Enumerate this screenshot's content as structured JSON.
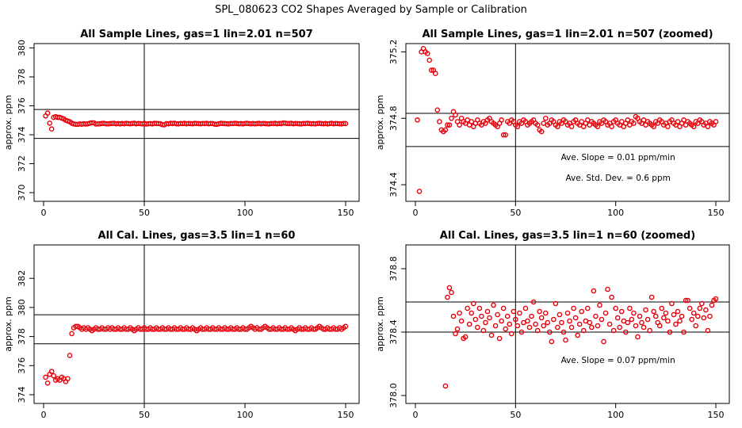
{
  "figure_title": "SPL_080623  CO2 Shapes Averaged by Sample or Calibration",
  "colors": {
    "points": "#e8000b",
    "axes": "#000000",
    "lines": "#000000"
  },
  "chart_data": [
    {
      "type": "scatter",
      "title": "All Sample Lines, gas=1 lin=2.01 n=507",
      "ylabel": "approx. ppm",
      "xlim": [
        0,
        150
      ],
      "ylim": [
        369.4,
        380.3
      ],
      "xticks": [
        "0",
        "50",
        "100",
        "150"
      ],
      "yticks": [
        "370",
        "372",
        "374",
        "376",
        "378",
        "380"
      ],
      "hlines": [
        375.75,
        373.75
      ],
      "vline": 50,
      "annotations": [],
      "x": [
        1,
        2,
        3,
        4,
        5,
        6,
        7,
        8,
        9,
        10,
        11,
        12,
        13,
        14,
        15,
        16,
        17,
        18,
        19,
        20,
        21,
        22,
        23,
        24,
        25,
        26,
        27,
        28,
        29,
        30,
        31,
        32,
        33,
        34,
        35,
        36,
        37,
        38,
        39,
        40,
        41,
        42,
        43,
        44,
        45,
        46,
        47,
        48,
        49,
        50,
        51,
        52,
        53,
        54,
        55,
        56,
        57,
        58,
        59,
        60,
        61,
        62,
        63,
        64,
        65,
        66,
        67,
        68,
        69,
        70,
        71,
        72,
        73,
        74,
        75,
        76,
        77,
        78,
        79,
        80,
        81,
        82,
        83,
        84,
        85,
        86,
        87,
        88,
        89,
        90,
        91,
        92,
        93,
        94,
        95,
        96,
        97,
        98,
        99,
        100,
        101,
        102,
        103,
        104,
        105,
        106,
        107,
        108,
        109,
        110,
        111,
        112,
        113,
        114,
        115,
        116,
        117,
        118,
        119,
        120,
        121,
        122,
        123,
        124,
        125,
        126,
        127,
        128,
        129,
        130,
        131,
        132,
        133,
        134,
        135,
        136,
        137,
        138,
        139,
        140,
        141,
        142,
        143,
        144,
        145,
        146,
        147,
        148,
        149,
        150
      ],
      "y": [
        375.3,
        375.5,
        374.8,
        374.4,
        375.2,
        375.25,
        375.2,
        375.2,
        375.15,
        375.1,
        375.0,
        374.95,
        374.9,
        374.8,
        374.75,
        374.72,
        374.72,
        374.75,
        374.73,
        374.76,
        374.74,
        374.76,
        374.8,
        374.83,
        374.82,
        374.74,
        374.75,
        374.76,
        374.78,
        374.79,
        374.76,
        374.75,
        374.77,
        374.78,
        374.79,
        374.76,
        374.77,
        374.75,
        374.78,
        374.76,
        374.79,
        374.77,
        374.76,
        374.78,
        374.8,
        374.76,
        374.78,
        374.77,
        374.75,
        374.79,
        374.74,
        374.76,
        374.77,
        374.75,
        374.79,
        374.78,
        374.77,
        374.76,
        374.7,
        374.69,
        374.77,
        374.76,
        374.79,
        374.78,
        374.8,
        374.76,
        374.75,
        374.78,
        374.77,
        374.79,
        374.76,
        374.78,
        374.77,
        374.76,
        374.79,
        374.78,
        374.77,
        374.76,
        374.78,
        374.77,
        374.79,
        374.76,
        374.78,
        374.77,
        374.73,
        374.72,
        374.76,
        374.79,
        374.78,
        374.77,
        374.76,
        374.75,
        374.78,
        374.77,
        374.79,
        374.78,
        374.76,
        374.77,
        374.75,
        374.78,
        374.79,
        374.77,
        374.76,
        374.78,
        374.75,
        374.77,
        374.79,
        374.76,
        374.78,
        374.77,
        374.76,
        374.75,
        374.78,
        374.77,
        374.79,
        374.76,
        374.78,
        374.77,
        374.81,
        374.8,
        374.78,
        374.77,
        374.79,
        374.76,
        374.78,
        374.77,
        374.76,
        374.75,
        374.78,
        374.77,
        374.79,
        374.78,
        374.76,
        374.77,
        374.75,
        374.78,
        374.79,
        374.77,
        374.76,
        374.78,
        374.75,
        374.77,
        374.79,
        374.76,
        374.78,
        374.77,
        374.76,
        374.75,
        374.78,
        374.77
      ]
    },
    {
      "type": "scatter",
      "title": "All Sample Lines, gas=1 lin=2.01 n=507 (zoomed)",
      "ylabel": "approx. ppm",
      "xlim": [
        0,
        150
      ],
      "ylim": [
        374.3,
        375.25
      ],
      "xticks": [
        "0",
        "50",
        "100",
        "150"
      ],
      "yticks": [
        "374.4",
        "374.8",
        "375.2"
      ],
      "hlines": [
        374.83,
        374.63
      ],
      "vline": 50,
      "annotations": [
        "Ave. Slope =  0.01  ppm/min",
        "Ave. Std. Dev. =  0.6  ppm"
      ],
      "x": [
        1,
        2,
        3,
        4,
        5,
        6,
        7,
        8,
        9,
        10,
        11,
        12,
        13,
        14,
        15,
        16,
        17,
        18,
        19,
        20,
        21,
        22,
        23,
        24,
        25,
        26,
        27,
        28,
        29,
        30,
        31,
        32,
        33,
        34,
        35,
        36,
        37,
        38,
        39,
        40,
        41,
        42,
        43,
        44,
        45,
        46,
        47,
        48,
        49,
        50,
        51,
        52,
        53,
        54,
        55,
        56,
        57,
        58,
        59,
        60,
        61,
        62,
        63,
        64,
        65,
        66,
        67,
        68,
        69,
        70,
        71,
        72,
        73,
        74,
        75,
        76,
        77,
        78,
        79,
        80,
        81,
        82,
        83,
        84,
        85,
        86,
        87,
        88,
        89,
        90,
        91,
        92,
        93,
        94,
        95,
        96,
        97,
        98,
        99,
        100,
        101,
        102,
        103,
        104,
        105,
        106,
        107,
        108,
        109,
        110,
        111,
        112,
        113,
        114,
        115,
        116,
        117,
        118,
        119,
        120,
        121,
        122,
        123,
        124,
        125,
        126,
        127,
        128,
        129,
        130,
        131,
        132,
        133,
        134,
        135,
        136,
        137,
        138,
        139,
        140,
        141,
        142,
        143,
        144,
        145,
        146,
        147,
        148,
        149,
        150
      ],
      "y": [
        374.79,
        374.36,
        375.2,
        375.22,
        375.2,
        375.19,
        375.15,
        375.09,
        375.09,
        375.07,
        374.85,
        374.78,
        374.73,
        374.72,
        374.73,
        374.76,
        374.76,
        374.8,
        374.84,
        374.82,
        374.78,
        374.76,
        374.8,
        374.78,
        374.77,
        374.79,
        374.76,
        374.78,
        374.75,
        374.77,
        374.79,
        374.77,
        374.76,
        374.78,
        374.77,
        374.79,
        374.8,
        374.78,
        374.77,
        374.76,
        374.75,
        374.77,
        374.79,
        374.7,
        374.7,
        374.78,
        374.77,
        374.79,
        374.78,
        374.76,
        374.75,
        374.78,
        374.77,
        374.79,
        374.78,
        374.76,
        374.77,
        374.78,
        374.79,
        374.77,
        374.76,
        374.73,
        374.72,
        374.77,
        374.8,
        374.76,
        374.77,
        374.79,
        374.78,
        374.76,
        374.75,
        374.78,
        374.77,
        374.79,
        374.78,
        374.76,
        374.77,
        374.75,
        374.78,
        374.79,
        374.77,
        374.76,
        374.78,
        374.75,
        374.77,
        374.79,
        374.76,
        374.78,
        374.77,
        374.76,
        374.75,
        374.78,
        374.77,
        374.79,
        374.78,
        374.76,
        374.77,
        374.75,
        374.78,
        374.79,
        374.77,
        374.76,
        374.78,
        374.75,
        374.77,
        374.79,
        374.76,
        374.78,
        374.77,
        374.81,
        374.8,
        374.78,
        374.77,
        374.79,
        374.76,
        374.78,
        374.77,
        374.76,
        374.75,
        374.78,
        374.77,
        374.79,
        374.78,
        374.76,
        374.77,
        374.75,
        374.78,
        374.79,
        374.77,
        374.76,
        374.78,
        374.75,
        374.77,
        374.79,
        374.76,
        374.78,
        374.77,
        374.76,
        374.75,
        374.78,
        374.77,
        374.79,
        374.78,
        374.76,
        374.77,
        374.75,
        374.78,
        374.77,
        374.76,
        374.78
      ]
    },
    {
      "type": "scatter",
      "title": "All Cal. Lines, gas=3.5 lin=1 n=60",
      "ylabel": "approx. ppm",
      "xlim": [
        0,
        150
      ],
      "ylim": [
        373.4,
        384.3
      ],
      "xticks": [
        "0",
        "50",
        "100",
        "150"
      ],
      "yticks": [
        "374",
        "376",
        "378",
        "380",
        "382"
      ],
      "hlines": [
        379.5,
        377.5
      ],
      "vline": 50,
      "annotations": [],
      "x": [
        1,
        2,
        3,
        4,
        5,
        6,
        7,
        8,
        9,
        10,
        11,
        12,
        13,
        14,
        15,
        16,
        17,
        18,
        19,
        20,
        21,
        22,
        23,
        24,
        25,
        26,
        27,
        28,
        29,
        30,
        31,
        32,
        33,
        34,
        35,
        36,
        37,
        38,
        39,
        40,
        41,
        42,
        43,
        44,
        45,
        46,
        47,
        48,
        49,
        50,
        51,
        52,
        53,
        54,
        55,
        56,
        57,
        58,
        59,
        60,
        61,
        62,
        63,
        64,
        65,
        66,
        67,
        68,
        69,
        70,
        71,
        72,
        73,
        74,
        75,
        76,
        77,
        78,
        79,
        80,
        81,
        82,
        83,
        84,
        85,
        86,
        87,
        88,
        89,
        90,
        91,
        92,
        93,
        94,
        95,
        96,
        97,
        98,
        99,
        100,
        101,
        102,
        103,
        104,
        105,
        106,
        107,
        108,
        109,
        110,
        111,
        112,
        113,
        114,
        115,
        116,
        117,
        118,
        119,
        120,
        121,
        122,
        123,
        124,
        125,
        126,
        127,
        128,
        129,
        130,
        131,
        132,
        133,
        134,
        135,
        136,
        137,
        138,
        139,
        140,
        141,
        142,
        143,
        144,
        145,
        146,
        147,
        148,
        149,
        150
      ],
      "y": [
        375.2,
        374.8,
        375.4,
        375.6,
        375.3,
        375.0,
        375.1,
        375.0,
        375.2,
        375.1,
        374.9,
        375.1,
        376.7,
        378.2,
        378.6,
        378.7,
        378.7,
        378.6,
        378.5,
        378.6,
        378.5,
        378.6,
        378.5,
        378.4,
        378.5,
        378.6,
        378.5,
        378.5,
        378.6,
        378.5,
        378.5,
        378.6,
        378.5,
        378.6,
        378.5,
        378.5,
        378.6,
        378.5,
        378.5,
        378.6,
        378.5,
        378.5,
        378.6,
        378.5,
        378.4,
        378.5,
        378.6,
        378.5,
        378.5,
        378.6,
        378.5,
        378.5,
        378.6,
        378.5,
        378.5,
        378.6,
        378.5,
        378.5,
        378.6,
        378.5,
        378.5,
        378.6,
        378.5,
        378.5,
        378.6,
        378.5,
        378.5,
        378.6,
        378.5,
        378.5,
        378.6,
        378.5,
        378.5,
        378.6,
        378.5,
        378.4,
        378.5,
        378.6,
        378.5,
        378.5,
        378.6,
        378.5,
        378.5,
        378.6,
        378.5,
        378.5,
        378.6,
        378.5,
        378.5,
        378.6,
        378.5,
        378.5,
        378.6,
        378.5,
        378.5,
        378.6,
        378.5,
        378.5,
        378.6,
        378.5,
        378.5,
        378.6,
        378.7,
        378.6,
        378.5,
        378.6,
        378.5,
        378.5,
        378.6,
        378.7,
        378.6,
        378.5,
        378.5,
        378.6,
        378.5,
        378.5,
        378.6,
        378.5,
        378.5,
        378.6,
        378.5,
        378.5,
        378.6,
        378.5,
        378.4,
        378.5,
        378.6,
        378.5,
        378.5,
        378.6,
        378.5,
        378.5,
        378.6,
        378.5,
        378.5,
        378.6,
        378.7,
        378.6,
        378.5,
        378.5,
        378.6,
        378.5,
        378.5,
        378.6,
        378.5,
        378.5,
        378.6,
        378.5,
        378.6,
        378.7
      ]
    },
    {
      "type": "scatter",
      "title": "All Cal. Lines, gas=3.5 lin=1 n=60 (zoomed)",
      "ylabel": "approx. ppm",
      "xlim": [
        0,
        150
      ],
      "ylim": [
        377.95,
        378.95
      ],
      "xticks": [
        "0",
        "50",
        "100",
        "150"
      ],
      "yticks": [
        "378.0",
        "378.4",
        "378.8"
      ],
      "hlines": [
        378.59,
        378.4
      ],
      "vline": 50,
      "annotations": [
        "Ave. Slope =  0.07  ppm/min"
      ],
      "x": [
        15,
        16,
        17,
        18,
        19,
        20,
        21,
        22,
        23,
        24,
        25,
        26,
        27,
        28,
        29,
        30,
        31,
        32,
        33,
        34,
        35,
        36,
        37,
        38,
        39,
        40,
        41,
        42,
        43,
        44,
        45,
        46,
        47,
        48,
        49,
        50,
        51,
        52,
        53,
        54,
        55,
        56,
        57,
        58,
        59,
        60,
        61,
        62,
        63,
        64,
        65,
        66,
        67,
        68,
        69,
        70,
        71,
        72,
        73,
        74,
        75,
        76,
        77,
        78,
        79,
        80,
        81,
        82,
        83,
        84,
        85,
        86,
        87,
        88,
        89,
        90,
        91,
        92,
        93,
        94,
        95,
        96,
        97,
        98,
        99,
        100,
        101,
        102,
        103,
        104,
        105,
        106,
        107,
        108,
        109,
        110,
        111,
        112,
        113,
        114,
        115,
        116,
        117,
        118,
        119,
        120,
        121,
        122,
        123,
        124,
        125,
        126,
        127,
        128,
        129,
        130,
        131,
        132,
        133,
        134,
        135,
        136,
        137,
        138,
        139,
        140,
        141,
        142,
        143,
        144,
        145,
        146,
        147,
        148,
        149,
        150
      ],
      "y": [
        378.06,
        378.62,
        378.68,
        378.65,
        378.5,
        378.39,
        378.42,
        378.52,
        378.47,
        378.36,
        378.37,
        378.55,
        378.45,
        378.52,
        378.58,
        378.48,
        378.43,
        378.55,
        378.5,
        378.41,
        378.46,
        378.53,
        378.49,
        378.38,
        378.57,
        378.44,
        378.51,
        378.36,
        378.47,
        378.55,
        378.42,
        378.5,
        378.45,
        378.39,
        378.53,
        378.48,
        378.44,
        378.52,
        378.4,
        378.46,
        378.55,
        378.47,
        378.43,
        378.5,
        378.59,
        378.45,
        378.41,
        378.53,
        378.49,
        378.44,
        378.52,
        378.46,
        378.4,
        378.34,
        378.48,
        378.58,
        378.43,
        378.51,
        378.46,
        378.4,
        378.35,
        378.52,
        378.47,
        378.43,
        378.55,
        378.49,
        378.38,
        378.45,
        378.53,
        378.41,
        378.47,
        378.55,
        378.46,
        378.43,
        378.66,
        378.5,
        378.44,
        378.57,
        378.48,
        378.34,
        378.52,
        378.67,
        378.45,
        378.62,
        378.41,
        378.55,
        378.49,
        378.43,
        378.53,
        378.47,
        378.4,
        378.46,
        378.55,
        378.48,
        378.52,
        378.44,
        378.37,
        378.5,
        378.46,
        378.43,
        378.54,
        378.48,
        378.41,
        378.62,
        378.53,
        378.5,
        378.46,
        378.44,
        378.55,
        378.49,
        378.52,
        378.47,
        378.4,
        378.58,
        378.51,
        378.45,
        378.53,
        378.47,
        378.5,
        378.4,
        378.6,
        378.6,
        378.55,
        378.48,
        378.52,
        378.44,
        378.5,
        378.55,
        378.58,
        378.49,
        378.54,
        378.41,
        378.5,
        378.57,
        378.6,
        378.61
      ]
    }
  ]
}
